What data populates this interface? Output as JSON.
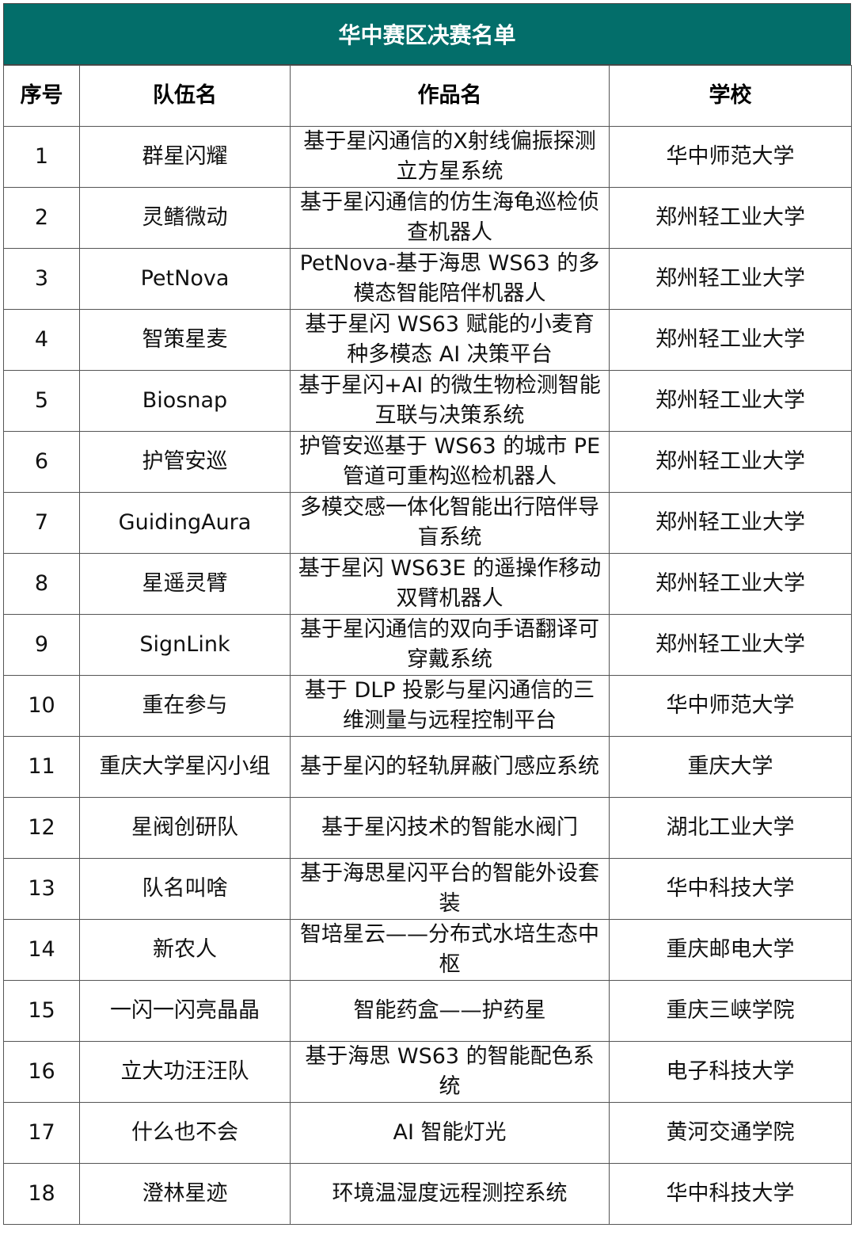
{
  "title": "华中赛区决赛名单",
  "headers": [
    "序号",
    "队伍名",
    "作品名",
    "学校"
  ],
  "header_color": "#036e6a",
  "rows": [
    [
      "1",
      "群星闪耀",
      "基于星闪通信的X射线偏振探测立方星系统",
      "华中师范大学"
    ],
    [
      "2",
      "灵鳍微动",
      "基于星闪通信的仿生海龟巡检侦查机器人",
      "郑州轻工业大学"
    ],
    [
      "3",
      "PetNova",
      "PetNova-基于海思 WS63 的多模态智能陪伴机器人",
      "郑州轻工业大学"
    ],
    [
      "4",
      "智策星麦",
      "基于星闪 WS63 赋能的小麦育种多模态 AI 决策平台",
      "郑州轻工业大学"
    ],
    [
      "5",
      "Biosnap",
      "基于星闪+AI 的微生物检测智能互联与决策系统",
      "郑州轻工业大学"
    ],
    [
      "6",
      "护管安巡",
      "护管安巡基于 WS63 的城市 PE 管道可重构巡检机器人",
      "郑州轻工业大学"
    ],
    [
      "7",
      "GuidingAura",
      "多模交感一体化智能出行陪伴导盲系统",
      "郑州轻工业大学"
    ],
    [
      "8",
      "星遥灵臂",
      "基于星闪 WS63E 的遥操作移动双臂机器人",
      "郑州轻工业大学"
    ],
    [
      "9",
      "SignLink",
      "基于星闪通信的双向手语翻译可穿戴系统",
      "郑州轻工业大学"
    ],
    [
      "10",
      "重在参与",
      "基于 DLP 投影与星闪通信的三维测量与远程控制平台",
      "华中师范大学"
    ],
    [
      "11",
      "重庆大学星闪小组",
      "基于星闪的轻轨屏蔽门感应系统",
      "重庆大学"
    ],
    [
      "12",
      "星阀创研队",
      "基于星闪技术的智能水阀门",
      "湖北工业大学"
    ],
    [
      "13",
      "队名叫啥",
      "基于海思星闪平台的智能外设套装",
      "华中科技大学"
    ],
    [
      "14",
      "新农人",
      "智培星云——分布式水培生态中枢",
      "重庆邮电大学"
    ],
    [
      "15",
      "一闪一闪亮晶晶",
      "智能药盒——护药星",
      "重庆三峡学院"
    ],
    [
      "16",
      "立大功汪汪队",
      "基于海思 WS63 的智能配色系统",
      "电子科技大学"
    ],
    [
      "17",
      "什么也不会",
      "AI 智能灯光",
      "黄河交通学院"
    ],
    [
      "18",
      "澄林星迹",
      "环境温湿度远程测控系统",
      "华中科技大学"
    ]
  ]
}
